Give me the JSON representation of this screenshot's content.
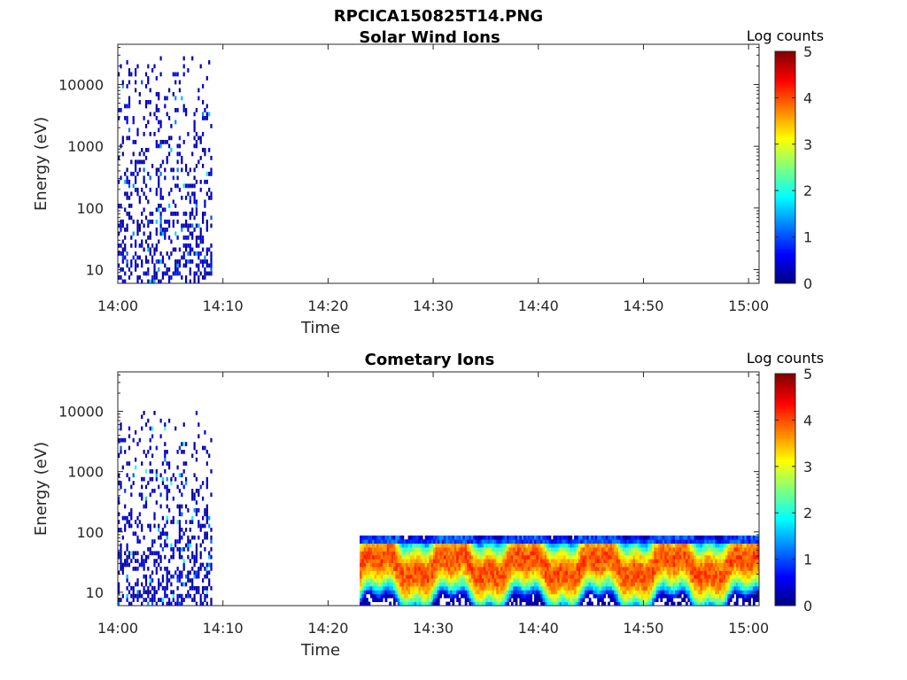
{
  "figure": {
    "filename": "RPCICA150825T14.PNG"
  },
  "chart_data": [
    {
      "type": "heatmap",
      "title": "Solar Wind Ions",
      "xlabel": "Time",
      "ylabel": "Energy (eV)",
      "x_ticks": [
        "14:00",
        "14:10",
        "14:20",
        "14:30",
        "14:40",
        "14:50",
        "15:00"
      ],
      "x_range": [
        "14:00",
        "15:01"
      ],
      "y_scale": "log",
      "y_ticks": [
        10,
        100,
        1000,
        10000
      ],
      "y_tick_labels": [
        "10",
        "100",
        "1000",
        "10000"
      ],
      "y_range": [
        6,
        45000
      ],
      "colorbar": {
        "label": "Log counts",
        "range": [
          0,
          5
        ],
        "ticks": [
          "0",
          "1",
          "2",
          "3",
          "4",
          "5"
        ],
        "colormap": "jet"
      },
      "regions": [
        {
          "t_start": "14:00",
          "t_end": "14:09",
          "e_min": 6,
          "e_max": 25000,
          "log_counts_max": 1.8,
          "note": "sparse"
        }
      ]
    },
    {
      "type": "heatmap",
      "title": "Cometary Ions",
      "xlabel": "Time",
      "ylabel": "Energy (eV)",
      "x_ticks": [
        "14:00",
        "14:10",
        "14:20",
        "14:30",
        "14:40",
        "14:50",
        "15:00"
      ],
      "x_range": [
        "14:00",
        "15:01"
      ],
      "y_scale": "log",
      "y_ticks": [
        10,
        100,
        1000,
        10000
      ],
      "y_tick_labels": [
        "10",
        "100",
        "1000",
        "10000"
      ],
      "y_range": [
        6,
        45000
      ],
      "colorbar": {
        "label": "Log counts",
        "range": [
          0,
          5
        ],
        "ticks": [
          "0",
          "1",
          "2",
          "3",
          "4",
          "5"
        ],
        "colormap": "jet"
      },
      "regions": [
        {
          "t_start": "14:00",
          "t_end": "14:09",
          "e_min": 6,
          "e_max": 10000,
          "log_counts_max": 2.3,
          "note": "sparse"
        },
        {
          "t_start": "14:23",
          "t_end": "15:01",
          "e_min": 6,
          "e_max": 80,
          "peak_energy": 25,
          "log_counts_max": 4.3,
          "note": "dense band"
        }
      ]
    }
  ]
}
